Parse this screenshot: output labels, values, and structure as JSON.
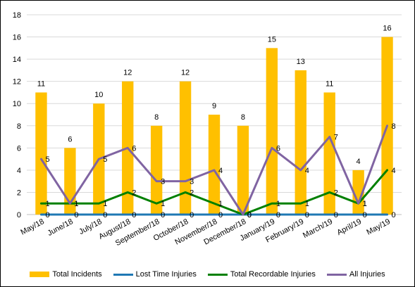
{
  "chart_data": {
    "type": "bar",
    "title": "",
    "xlabel": "",
    "ylabel": "",
    "ylim": [
      0,
      18
    ],
    "yticks": [
      "0",
      "2",
      "4",
      "6",
      "8",
      "10",
      "12",
      "14",
      "16",
      "18"
    ],
    "grid": true,
    "legend_position": "bottom",
    "categories": [
      "May/18",
      "June/18",
      "July/18",
      "August/18",
      "September/18",
      "October/18",
      "November/18",
      "December/18",
      "January/19",
      "February/19",
      "March/19",
      "April/19",
      "May/19"
    ],
    "series": [
      {
        "name": "Total Incidents",
        "kind": "bar",
        "color": "#FFC000",
        "values": [
          11,
          6,
          10,
          12,
          8,
          12,
          9,
          8,
          15,
          13,
          11,
          4,
          16
        ]
      },
      {
        "name": "Lost Time Injuries",
        "kind": "line",
        "color": "#1F78B4",
        "values": [
          0,
          0,
          0,
          0,
          0,
          0,
          0,
          0,
          0,
          0,
          0,
          0,
          0
        ]
      },
      {
        "name": "Total Recordable Injuries",
        "kind": "line",
        "color": "#008000",
        "values": [
          1,
          1,
          1,
          2,
          1,
          2,
          1,
          0,
          1,
          1,
          2,
          1,
          4
        ]
      },
      {
        "name": "All Injuries",
        "kind": "line",
        "color": "#8064A2",
        "values": [
          5,
          1,
          5,
          6,
          3,
          3,
          4,
          0,
          6,
          4,
          7,
          1,
          8
        ]
      }
    ]
  }
}
